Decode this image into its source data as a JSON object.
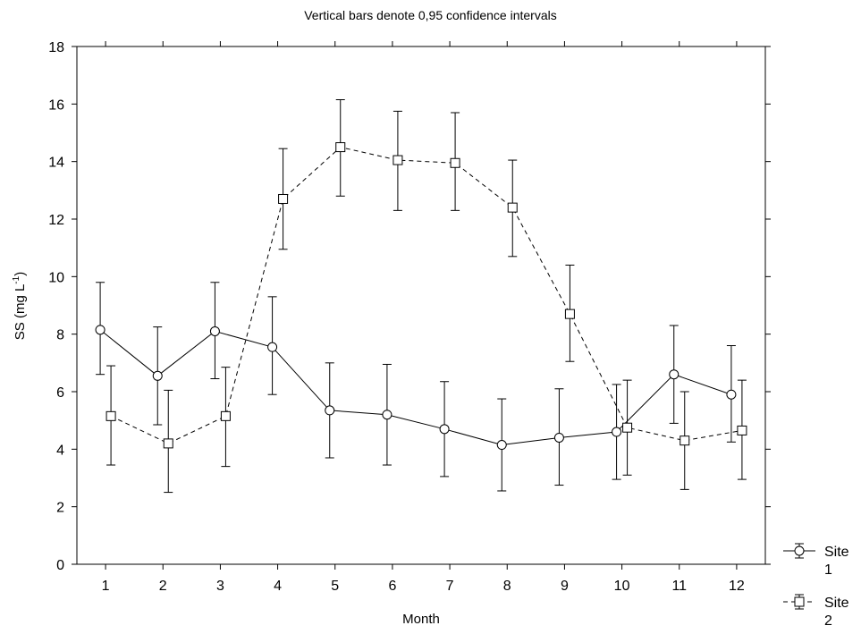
{
  "chart_data": {
    "type": "line",
    "title": "Vertical bars denote 0,95 confidence intervals",
    "xlabel": "Month",
    "ylabel": {
      "base": "SS (mg L",
      "exp": "-1",
      "close": ")"
    },
    "x": [
      1,
      2,
      3,
      4,
      5,
      6,
      7,
      8,
      9,
      10,
      11,
      12
    ],
    "ylim": [
      0,
      18
    ],
    "yticks": [
      0,
      2,
      4,
      6,
      8,
      10,
      12,
      14,
      16,
      18
    ],
    "grid": false,
    "legend_position": "bottom-right, outside plot",
    "series": [
      {
        "name": "Site 1",
        "legend_lines": [
          "Site",
          "1"
        ],
        "marker": "circle",
        "line_style": "solid",
        "values": [
          8.15,
          6.55,
          8.1,
          7.55,
          5.35,
          5.2,
          4.7,
          4.15,
          4.4,
          4.6,
          6.6,
          5.9
        ],
        "ci_lower": [
          6.6,
          4.85,
          6.45,
          5.9,
          3.7,
          3.45,
          3.05,
          2.55,
          2.75,
          2.95,
          4.9,
          4.25
        ],
        "ci_upper": [
          9.8,
          8.25,
          9.8,
          9.3,
          7.0,
          6.95,
          6.35,
          5.75,
          6.1,
          6.25,
          8.3,
          7.6
        ]
      },
      {
        "name": "Site 2",
        "legend_lines": [
          "Site",
          "2"
        ],
        "marker": "square",
        "line_style": "dashed",
        "values": [
          5.15,
          4.2,
          5.15,
          12.7,
          14.5,
          14.05,
          13.95,
          12.4,
          8.7,
          4.75,
          4.3,
          4.65
        ],
        "ci_lower": [
          3.45,
          2.5,
          3.4,
          10.95,
          12.8,
          12.3,
          12.3,
          10.7,
          7.05,
          3.1,
          2.6,
          2.95
        ],
        "ci_upper": [
          6.9,
          6.05,
          6.85,
          14.45,
          16.15,
          15.75,
          15.7,
          14.05,
          10.4,
          6.4,
          6.0,
          6.4
        ]
      }
    ]
  }
}
